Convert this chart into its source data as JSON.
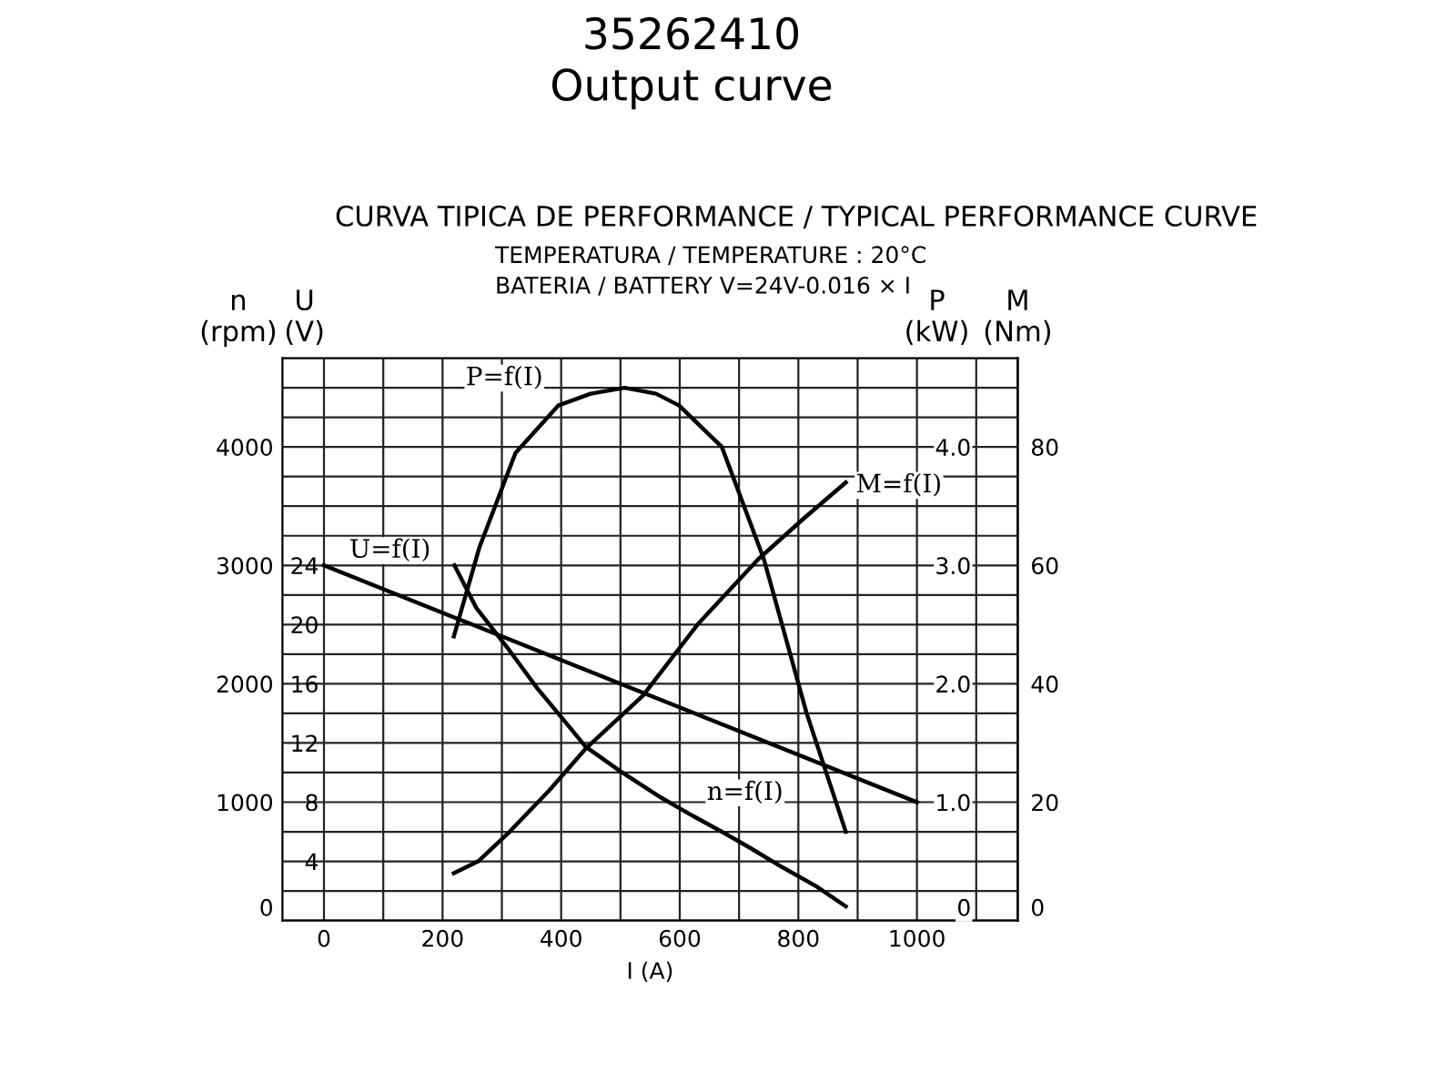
{
  "chart_data": [
    {
      "type": "line",
      "title": "35262410\nOutput curve",
      "subtitle": "CURVA TIPICA DE PERFORMANCE / TYPICAL PERFORMANCE CURVE",
      "annotations": [
        "TEMPERATURA / TEMPERATURE : 20°C",
        "BATERIA / BATTERY V=24V-0.016 × I"
      ],
      "xlabel": "I (A)",
      "ylabel": "n\n(rpm)",
      "y2label": "U\n(V)",
      "y3label": "P\n(kW)",
      "xlim": [
        -70,
        1170
      ],
      "xticks": [
        0,
        {
          "value": 100,
          "label": null
        },
        200,
        {
          "value": 300,
          "label": null
        },
        400,
        {
          "value": 500,
          "label": null
        },
        600,
        {
          "value": 700,
          "label": null
        },
        800,
        {
          "value": 900,
          "label": null
        },
        1000,
        {
          "value": 1100,
          "label": null
        }
      ],
      "ylim": [
        0,
        4750
      ],
      "yticks": [
        0,
        {
          "value": 250,
          "label": null
        },
        {
          "value": 500,
          "label": null
        },
        {
          "value": 750,
          "label": null
        },
        1000,
        {
          "value": 1250,
          "label": null
        },
        {
          "value": 1500,
          "label": null
        },
        {
          "value": 1750,
          "label": null
        },
        2000,
        {
          "value": 2250,
          "label": null
        },
        {
          "value": 2500,
          "label": null
        },
        {
          "value": 2750,
          "label": null
        },
        3000,
        {
          "value": 3250,
          "label": null
        },
        {
          "value": 3500,
          "label": null
        },
        {
          "value": 3750,
          "label": null
        },
        4000,
        {
          "value": 4250,
          "label": null
        },
        {
          "value": 4500,
          "label": null
        }
      ],
      "y2lim": [
        0,
        38
      ],
      "y2ticks": [
        4,
        8,
        12,
        16,
        20,
        24
      ],
      "y3lim": [
        0,
        4.75
      ],
      "y3ticks": [
        0,
        {
          "value": 1,
          "label": "1.0"
        },
        {
          "value": 2,
          "label": "2.0"
        },
        {
          "value": 3,
          "label": "3.0"
        },
        {
          "value": 4,
          "label": "4.0"
        }
      ],
      "grid": true,
      "legend": false,
      "marker": "none",
      "line_style": "solid",
      "series": [
        {
          "name": "n=f(I)",
          "color": "#000000",
          "x": [
            220,
            257,
            313,
            360,
            400,
            441,
            500,
            568,
            620,
            671,
            720,
            773,
            830,
            880
          ],
          "values": [
            3000,
            2640,
            2280,
            1960,
            1720,
            1470,
            1260,
            1040,
            890,
            750,
            610,
            450,
            290,
            120
          ]
        },
        {
          "name": "U=f(I)",
          "color": "#000000",
          "axis": "y2",
          "x": [
            0,
            1000
          ],
          "values": [
            24,
            8
          ]
        },
        {
          "name": "P=f(I)",
          "color": "#000000",
          "axis": "y3",
          "x": [
            219,
            262,
            323,
            395,
            450,
            507,
            560,
            599,
            671,
            742,
            814,
            880
          ],
          "values": [
            2.4,
            3.15,
            3.95,
            4.35,
            4.45,
            4.5,
            4.45,
            4.35,
            4.0,
            3.05,
            1.75,
            0.75
          ]
        }
      ]
    },
    {
      "type": "line",
      "ylabel": "M\n(Nm)",
      "xlim": [
        -70,
        1170
      ],
      "ylim": [
        0,
        95
      ],
      "yticks": [
        0,
        20,
        40,
        60,
        80
      ],
      "tick_labels": "y",
      "grid": false,
      "legend": false,
      "marker": "none",
      "line_style": "solid",
      "series": [
        {
          "name": "M=f(I)",
          "color": "#000000",
          "x": [
            219,
            260,
            313,
            380,
            441,
            538,
            630,
            732,
            810,
            880
          ],
          "values": [
            8,
            10,
            15,
            22,
            29,
            38,
            50,
            61,
            68,
            74
          ]
        }
      ]
    }
  ]
}
